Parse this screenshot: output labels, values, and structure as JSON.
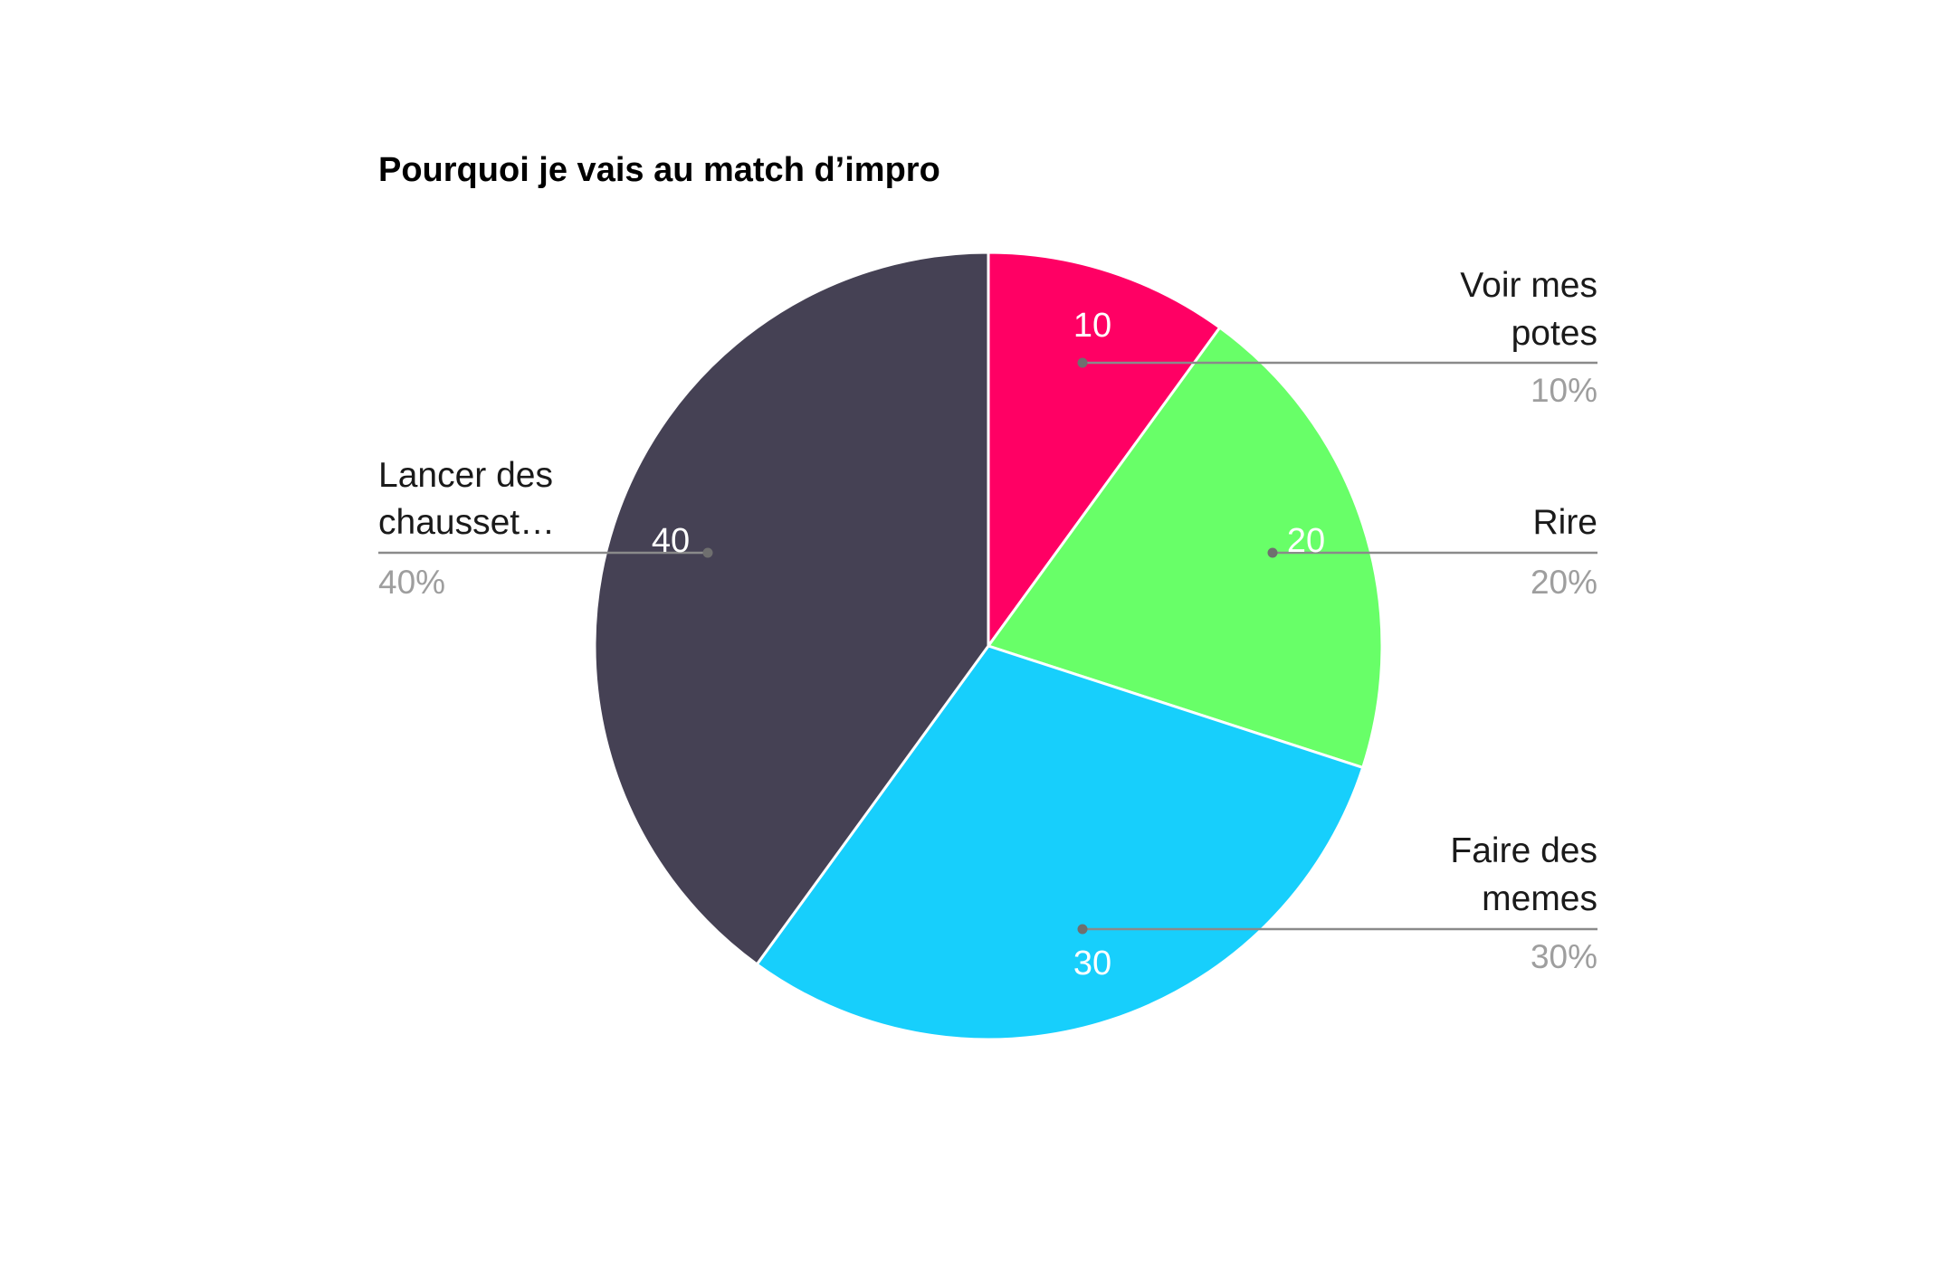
{
  "chart_data": {
    "type": "pie",
    "title": "Pourquoi je vais au match d’impro",
    "slices": [
      {
        "label_lines": [
          "Voir mes",
          "potes"
        ],
        "value": 10,
        "value_label": "10",
        "percent_label": "10%",
        "color": "#ff0064"
      },
      {
        "label_lines": [
          "Rire"
        ],
        "value": 20,
        "value_label": "20",
        "percent_label": "20%",
        "color": "#68ff68"
      },
      {
        "label_lines": [
          "Faire des",
          "memes"
        ],
        "value": 30,
        "value_label": "30",
        "percent_label": "30%",
        "color": "#17cffc"
      },
      {
        "label_lines": [
          "Lancer des",
          "chausset…"
        ],
        "value": 40,
        "value_label": "40",
        "percent_label": "40%",
        "color": "#454154"
      }
    ],
    "start_angle": "top",
    "direction": "clockwise",
    "legend": "none"
  }
}
